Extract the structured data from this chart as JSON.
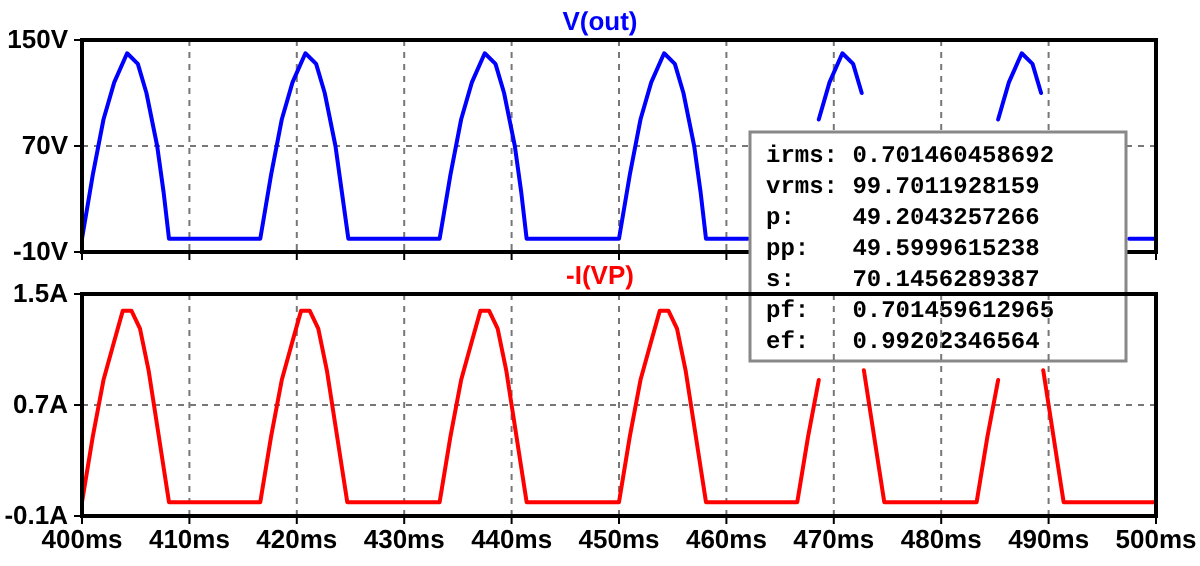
{
  "chart_data": [
    {
      "type": "line",
      "xlim": [
        400,
        500
      ],
      "xticks": [
        {
          "value": 400,
          "label": null
        },
        {
          "value": 410,
          "label": null
        },
        {
          "value": 420,
          "label": null
        },
        {
          "value": 430,
          "label": null
        },
        {
          "value": 440,
          "label": null
        },
        {
          "value": 450,
          "label": null
        },
        {
          "value": 460,
          "label": null
        },
        {
          "value": 470,
          "label": null
        },
        {
          "value": 480,
          "label": null
        },
        {
          "value": 490,
          "label": null
        },
        {
          "value": 500,
          "label": null
        }
      ],
      "ylim": [
        -10,
        150
      ],
      "yticks": [
        {
          "value": -10,
          "label": "-10V"
        },
        {
          "value": 70,
          "label": "70V"
        },
        {
          "value": 150,
          "label": "150V"
        }
      ],
      "grid": true,
      "tick_labels": "y",
      "line_style": "solid",
      "marker": "none",
      "series": [
        {
          "name": "V(out)",
          "color": "#0000ff",
          "x": [
            400,
            401,
            402,
            403,
            404.2,
            405.2,
            406,
            407,
            407.6,
            408.1,
            416.6,
            417.6,
            418.6,
            419.6,
            420.8,
            421.8,
            422.6,
            423.6,
            424.2,
            424.8,
            433.3,
            434.3,
            435.3,
            436.3,
            437.5,
            438.5,
            439.3,
            440.3,
            440.9,
            441.4,
            450,
            451,
            452,
            453,
            454.2,
            455.2,
            456,
            457,
            457.6,
            458.1,
            462,
            462.1,
            468.6,
            469.6,
            470.8,
            471.8,
            472.6,
            472.7,
            485.3,
            486.3,
            487.5,
            488.5,
            489.3,
            489.4,
            497.5,
            500
          ],
          "values": [
            0,
            48,
            90,
            118,
            140,
            132,
            110,
            70,
            35,
            0,
            0,
            48,
            90,
            118,
            140,
            132,
            110,
            70,
            35,
            0,
            0,
            48,
            90,
            118,
            140,
            132,
            110,
            70,
            35,
            0,
            0,
            48,
            90,
            118,
            140,
            132,
            110,
            70,
            35,
            0,
            0,
            null,
            90,
            118,
            140,
            132,
            110,
            null,
            90,
            118,
            140,
            132,
            110,
            null,
            0,
            0
          ]
        }
      ],
      "annotations": [
        "irms: 0.701460458692",
        "vrms: 99.7011928159",
        "p:    49.2043257266",
        "pp:   49.5999615238",
        "s:    70.1456289387",
        "pf:   0.701459612965",
        "ef:   0.99202346564"
      ]
    },
    {
      "type": "line",
      "xlim": [
        400,
        500
      ],
      "xticks": [
        {
          "value": 400,
          "label": "400ms"
        },
        {
          "value": 410,
          "label": "410ms"
        },
        {
          "value": 420,
          "label": "420ms"
        },
        {
          "value": 430,
          "label": "430ms"
        },
        {
          "value": 440,
          "label": "440ms"
        },
        {
          "value": 450,
          "label": "450ms"
        },
        {
          "value": 460,
          "label": "460ms"
        },
        {
          "value": 470,
          "label": "470ms"
        },
        {
          "value": 480,
          "label": "480ms"
        },
        {
          "value": 490,
          "label": "490ms"
        },
        {
          "value": 500,
          "label": "500ms"
        }
      ],
      "ylim": [
        -0.1,
        1.5
      ],
      "yticks": [
        {
          "value": -0.1,
          "label": "-0.1A"
        },
        {
          "value": 0.7,
          "label": "0.7A"
        },
        {
          "value": 1.5,
          "label": "1.5A"
        }
      ],
      "grid": true,
      "line_style": "solid",
      "marker": "none",
      "series": [
        {
          "name": "-I(VP)",
          "color": "#ff0000",
          "x": [
            400,
            401,
            402,
            403,
            403.8,
            404.6,
            405.4,
            406.2,
            407,
            407.6,
            408.1,
            416.6,
            417.6,
            418.6,
            419.6,
            420.4,
            421.2,
            422,
            422.8,
            423.6,
            424.2,
            424.7,
            433.3,
            434.3,
            435.3,
            436.3,
            437.1,
            437.9,
            438.7,
            439.5,
            440.3,
            440.9,
            441.4,
            450,
            451,
            452,
            453,
            453.8,
            454.6,
            455.4,
            456.2,
            457,
            457.6,
            458.1,
            466.6,
            467.6,
            468.6,
            468.7,
            472.8,
            473.6,
            474.2,
            474.7,
            483.3,
            484.3,
            485.3,
            485.4,
            489.5,
            490.3,
            490.9,
            491.4,
            500
          ],
          "values": [
            0,
            0.47,
            0.88,
            1.16,
            1.38,
            1.38,
            1.25,
            0.95,
            0.55,
            0.25,
            0,
            0,
            0.47,
            0.88,
            1.16,
            1.38,
            1.38,
            1.25,
            0.95,
            0.55,
            0.25,
            0,
            0,
            0.47,
            0.88,
            1.16,
            1.38,
            1.38,
            1.25,
            0.95,
            0.55,
            0.25,
            0,
            0,
            0.47,
            0.88,
            1.16,
            1.38,
            1.38,
            1.25,
            0.95,
            0.55,
            0.25,
            0,
            0,
            0.47,
            0.88,
            null,
            0.95,
            0.55,
            0.25,
            0,
            0,
            0.47,
            0.88,
            null,
            0.95,
            0.55,
            0.25,
            0,
            0
          ]
        }
      ]
    }
  ]
}
